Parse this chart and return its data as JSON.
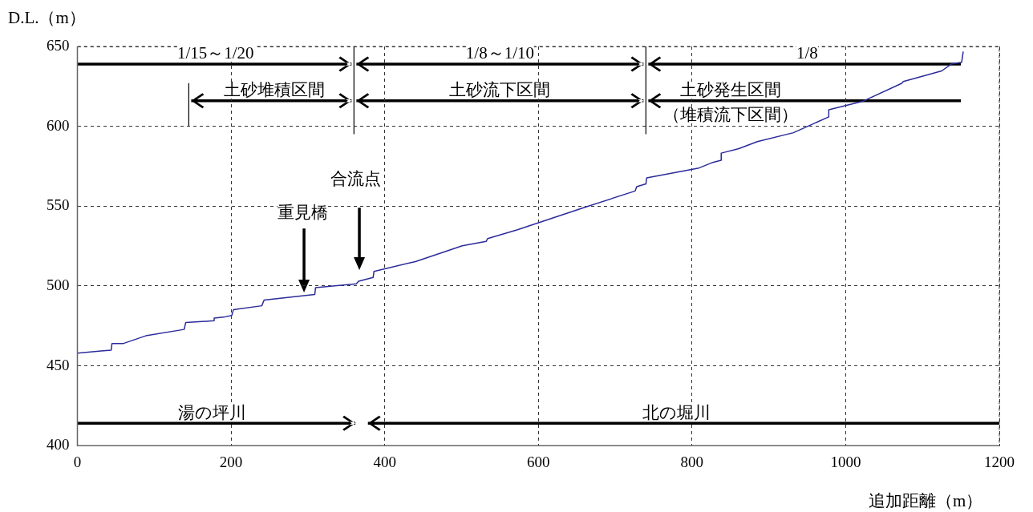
{
  "chart_data": {
    "type": "line",
    "xlabel": "追加距離（m）",
    "ylabel": "D.L.（m）",
    "series": [
      {
        "color": "#2b2b9a",
        "x": [
          0,
          31,
          44,
          45,
          60,
          89,
          139,
          141,
          178,
          178,
          192,
          201,
          203,
          240,
          243,
          309,
          310,
          363,
          366,
          385,
          386,
          440,
          501,
          532,
          534,
          572,
          662,
          726,
          728,
          740,
          741,
          809,
          826,
          838,
          838,
          861,
          885,
          932,
          978,
          978,
          1023,
          1073,
          1075,
          1125,
          1138,
          1151,
          1153
        ],
        "values": [
          457.9,
          459.3,
          459.8,
          464.0,
          464.0,
          468.8,
          472.8,
          477.1,
          478.2,
          479.9,
          480.7,
          481.5,
          485.1,
          487.6,
          491.2,
          494.7,
          498.9,
          501.3,
          503.0,
          505.4,
          509.1,
          515.3,
          525.2,
          527.9,
          529.7,
          535.1,
          549.5,
          559.5,
          562.2,
          563.9,
          567.7,
          573.9,
          577.2,
          578.7,
          583.2,
          586.0,
          590.4,
          596.0,
          605.9,
          610.4,
          615.8,
          626.9,
          628.0,
          634.7,
          639.1,
          640.1,
          646.8
        ]
      }
    ],
    "xlim": [
      0,
      1200
    ],
    "xticks": [
      0,
      200,
      400,
      600,
      800,
      1000,
      1200
    ],
    "ylim": [
      400,
      650
    ],
    "yticks": [
      400,
      450,
      500,
      550,
      600,
      650
    ],
    "grid": true,
    "legend": false,
    "marker": "none",
    "line_style": "solid",
    "annotations": [
      "1/15～1/20",
      "1/8～1/10",
      "1/8",
      "土砂堆積区間",
      "土砂流下区間",
      "土砂発生区間",
      "（堆積流下区間）",
      "合流点",
      "重見橋",
      "湯の坪川",
      "北の堀川"
    ]
  }
}
